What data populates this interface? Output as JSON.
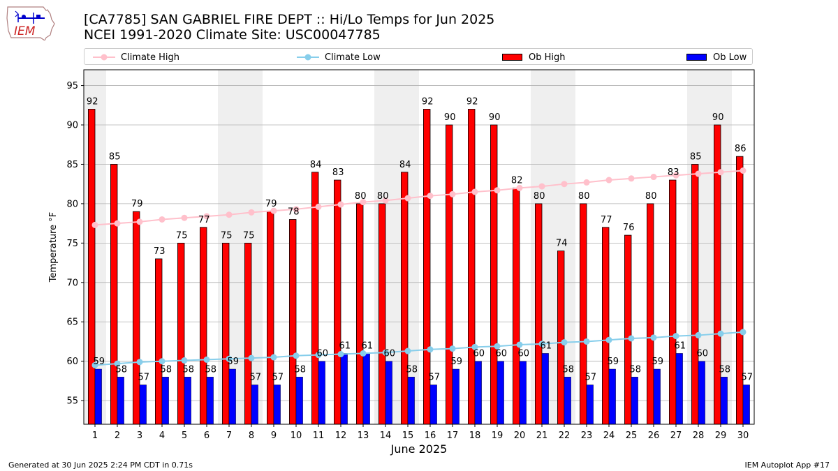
{
  "header": {
    "title_line1": "[CA7785] SAN GABRIEL FIRE DEPT :: Hi/Lo Temps for Jun 2025",
    "title_line2": "NCEI 1991-2020 Climate Site: USC00047785",
    "logo_text": "IEM"
  },
  "legend": {
    "climate_high": "Climate High",
    "climate_low": "Climate Low",
    "ob_high": "Ob High",
    "ob_low": "Ob Low"
  },
  "footer": {
    "left": "Generated at 30 Jun 2025 2:24 PM CDT in 0.71s",
    "right": "IEM Autoplot App #17"
  },
  "colors": {
    "ob_high": "#ff0000",
    "ob_low": "#0000ff",
    "climate_high": "#ffc0cb",
    "climate_low": "#87ceeb",
    "weekend_band": "#efefef",
    "grid": "#b0b0b0"
  },
  "chart_data": {
    "type": "bar",
    "xlabel": "June 2025",
    "ylabel": "Temperature °F",
    "ylim": [
      52,
      97
    ],
    "yticks": [
      55,
      60,
      65,
      70,
      75,
      80,
      85,
      90,
      95
    ],
    "grid": "horizontal",
    "legend_position": "top",
    "categories": [
      "1",
      "2",
      "3",
      "4",
      "5",
      "6",
      "7",
      "8",
      "9",
      "10",
      "11",
      "12",
      "13",
      "14",
      "15",
      "16",
      "17",
      "18",
      "19",
      "20",
      "21",
      "22",
      "23",
      "24",
      "25",
      "26",
      "27",
      "28",
      "29",
      "30"
    ],
    "shaded_weekend_days": [
      1,
      7,
      8,
      14,
      15,
      21,
      22,
      28,
      29
    ],
    "series": [
      {
        "name": "Ob High",
        "kind": "bar",
        "values": [
          92,
          85,
          79,
          73,
          75,
          77,
          75,
          75,
          79,
          78,
          84,
          83,
          80,
          80,
          84,
          92,
          90,
          92,
          90,
          82,
          80,
          74,
          80,
          77,
          76,
          80,
          83,
          85,
          90,
          86
        ]
      },
      {
        "name": "Ob Low",
        "kind": "bar",
        "values": [
          59,
          58,
          57,
          58,
          58,
          58,
          59,
          57,
          57,
          58,
          60,
          61,
          61,
          60,
          58,
          57,
          59,
          60,
          60,
          60,
          61,
          58,
          57,
          59,
          58,
          59,
          61,
          60,
          58,
          57
        ]
      },
      {
        "name": "Climate High",
        "kind": "line",
        "values": [
          77.3,
          77.5,
          77.7,
          78.0,
          78.2,
          78.4,
          78.6,
          78.9,
          79.1,
          79.3,
          79.6,
          79.9,
          80.2,
          80.4,
          80.7,
          81.0,
          81.2,
          81.5,
          81.7,
          82.0,
          82.2,
          82.5,
          82.7,
          83.0,
          83.2,
          83.4,
          83.6,
          83.8,
          84.0,
          84.2
        ]
      },
      {
        "name": "Climate Low",
        "kind": "line",
        "values": [
          59.5,
          59.7,
          59.9,
          60.0,
          60.1,
          60.2,
          60.3,
          60.4,
          60.5,
          60.7,
          60.8,
          60.9,
          61.0,
          61.1,
          61.3,
          61.5,
          61.6,
          61.8,
          61.9,
          62.1,
          62.2,
          62.4,
          62.5,
          62.7,
          62.9,
          63.0,
          63.2,
          63.3,
          63.5,
          63.7
        ]
      }
    ]
  }
}
